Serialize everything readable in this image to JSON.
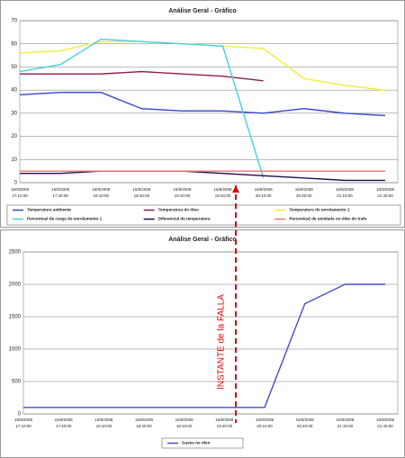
{
  "chart_data": [
    {
      "type": "line",
      "title": "Análise Geral - Gráfico",
      "categories": [
        "16/9/2008 17:10:00",
        "16/9/2008 17:40:00",
        "16/9/2008 18:10:00",
        "16/9/2008 18:40:00",
        "16/9/2008 19:10:00",
        "16/9/2008 19:40:00",
        "16/9/2008 20:10:00",
        "16/9/2008 20:40:00",
        "16/9/2008 21:10:00",
        "16/9/2008 21:40:00"
      ],
      "ylim": [
        0,
        70
      ],
      "yticks": [
        0,
        10,
        20,
        30,
        40,
        50,
        60,
        70
      ],
      "grid": true,
      "series": [
        {
          "name": "Temperatura ambiente",
          "color": "#3344cc",
          "values": [
            38,
            39,
            39,
            32,
            31,
            31,
            30,
            32,
            30,
            29
          ]
        },
        {
          "name": "Temperatura do óleo",
          "color": "#8b1a4a",
          "values": [
            47,
            47,
            47,
            48,
            47,
            46,
            44,
            null,
            null,
            null
          ]
        },
        {
          "name": "Temperatura do enrolamento 1",
          "color": "#f2ee3a",
          "values": [
            56,
            57,
            61,
            61,
            60,
            59,
            58,
            45,
            42,
            40
          ]
        },
        {
          "name": "Percentual de carga do enrolamento 1",
          "color": "#44d0e0",
          "values": [
            48,
            51,
            62,
            61,
            60,
            59,
            2,
            null,
            null,
            null
          ]
        },
        {
          "name": "Diferencial de temperatura",
          "color": "#1a1050",
          "values": [
            4,
            4,
            5,
            5,
            5,
            4,
            3,
            2,
            1,
            1
          ]
        },
        {
          "name": "Percentual de umidade no óleo do trafo",
          "color": "#f07070",
          "values": [
            5,
            5,
            5,
            5,
            5,
            5,
            5,
            5,
            5,
            5
          ]
        }
      ]
    },
    {
      "type": "line",
      "title": "Análise Geral - Gráfico",
      "categories": [
        "16/9/2008 17:10:00",
        "16/9/2008 17:40:00",
        "16/9/2008 18:10:00",
        "16/9/2008 18:40:00",
        "16/9/2008 19:10:00",
        "16/9/2008 19:40:00",
        "16/9/2008 20:10:00",
        "16/9/2008 20:40:00",
        "16/9/2008 21:10:00",
        "16/9/2008 21:40:00"
      ],
      "ylim": [
        0,
        2500
      ],
      "yticks": [
        0,
        500,
        1000,
        1500,
        2000,
        2500
      ],
      "grid": true,
      "annotation": "INSTANTE de la FALLA",
      "series": [
        {
          "name": "Gases no óleo",
          "color": "#4a4acc",
          "values": [
            100,
            100,
            100,
            100,
            100,
            100,
            100,
            1700,
            2000,
            2000
          ]
        }
      ]
    }
  ]
}
